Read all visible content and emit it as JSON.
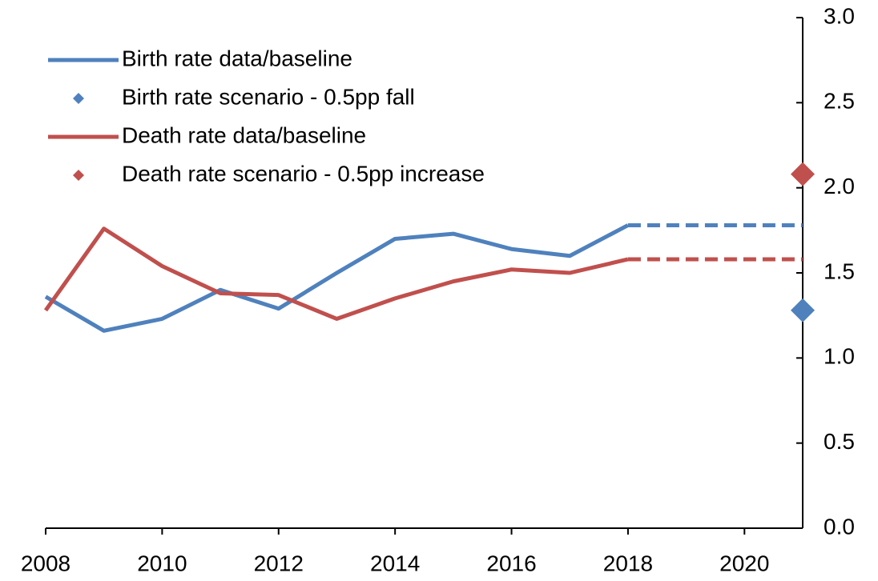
{
  "chart_data": {
    "type": "line",
    "x": [
      2008,
      2009,
      2010,
      2011,
      2012,
      2013,
      2014,
      2015,
      2016,
      2017,
      2018,
      2019,
      2020,
      2021
    ],
    "series": [
      {
        "name": "Birth rate data/baseline",
        "color": "#4f81bd",
        "style": "line",
        "dashed_from": 2018,
        "values": [
          1.36,
          1.16,
          1.23,
          1.4,
          1.29,
          1.5,
          1.7,
          1.73,
          1.64,
          1.6,
          1.78,
          1.78,
          1.78,
          1.78
        ]
      },
      {
        "name": "Birth rate scenario - 0.5pp fall",
        "color": "#4f81bd",
        "style": "marker",
        "values": [
          null,
          null,
          null,
          null,
          null,
          null,
          null,
          null,
          null,
          null,
          null,
          null,
          null,
          1.28
        ]
      },
      {
        "name": "Death rate data/baseline",
        "color": "#c0504d",
        "style": "line",
        "dashed_from": 2018,
        "values": [
          1.28,
          1.76,
          1.54,
          1.38,
          1.37,
          1.23,
          1.35,
          1.45,
          1.52,
          1.5,
          1.58,
          1.58,
          1.58,
          1.58
        ]
      },
      {
        "name": "Death rate scenario - 0.5pp increase",
        "color": "#c0504d",
        "style": "marker",
        "values": [
          null,
          null,
          null,
          null,
          null,
          null,
          null,
          null,
          null,
          null,
          null,
          null,
          null,
          2.08
        ]
      }
    ],
    "xlim": [
      2008,
      2021
    ],
    "xticks": [
      2008,
      2010,
      2012,
      2014,
      2016,
      2018,
      2020
    ],
    "ylim": [
      0,
      3
    ],
    "y_axis_side": "right",
    "yticks": [
      {
        "value": 0,
        "label": "0.0"
      },
      0.5,
      {
        "value": 1,
        "label": "1.0"
      },
      1.5,
      {
        "value": 2,
        "label": "2.0"
      },
      2.5,
      {
        "value": 3,
        "label": "3.0"
      }
    ],
    "legend": "top-left"
  }
}
